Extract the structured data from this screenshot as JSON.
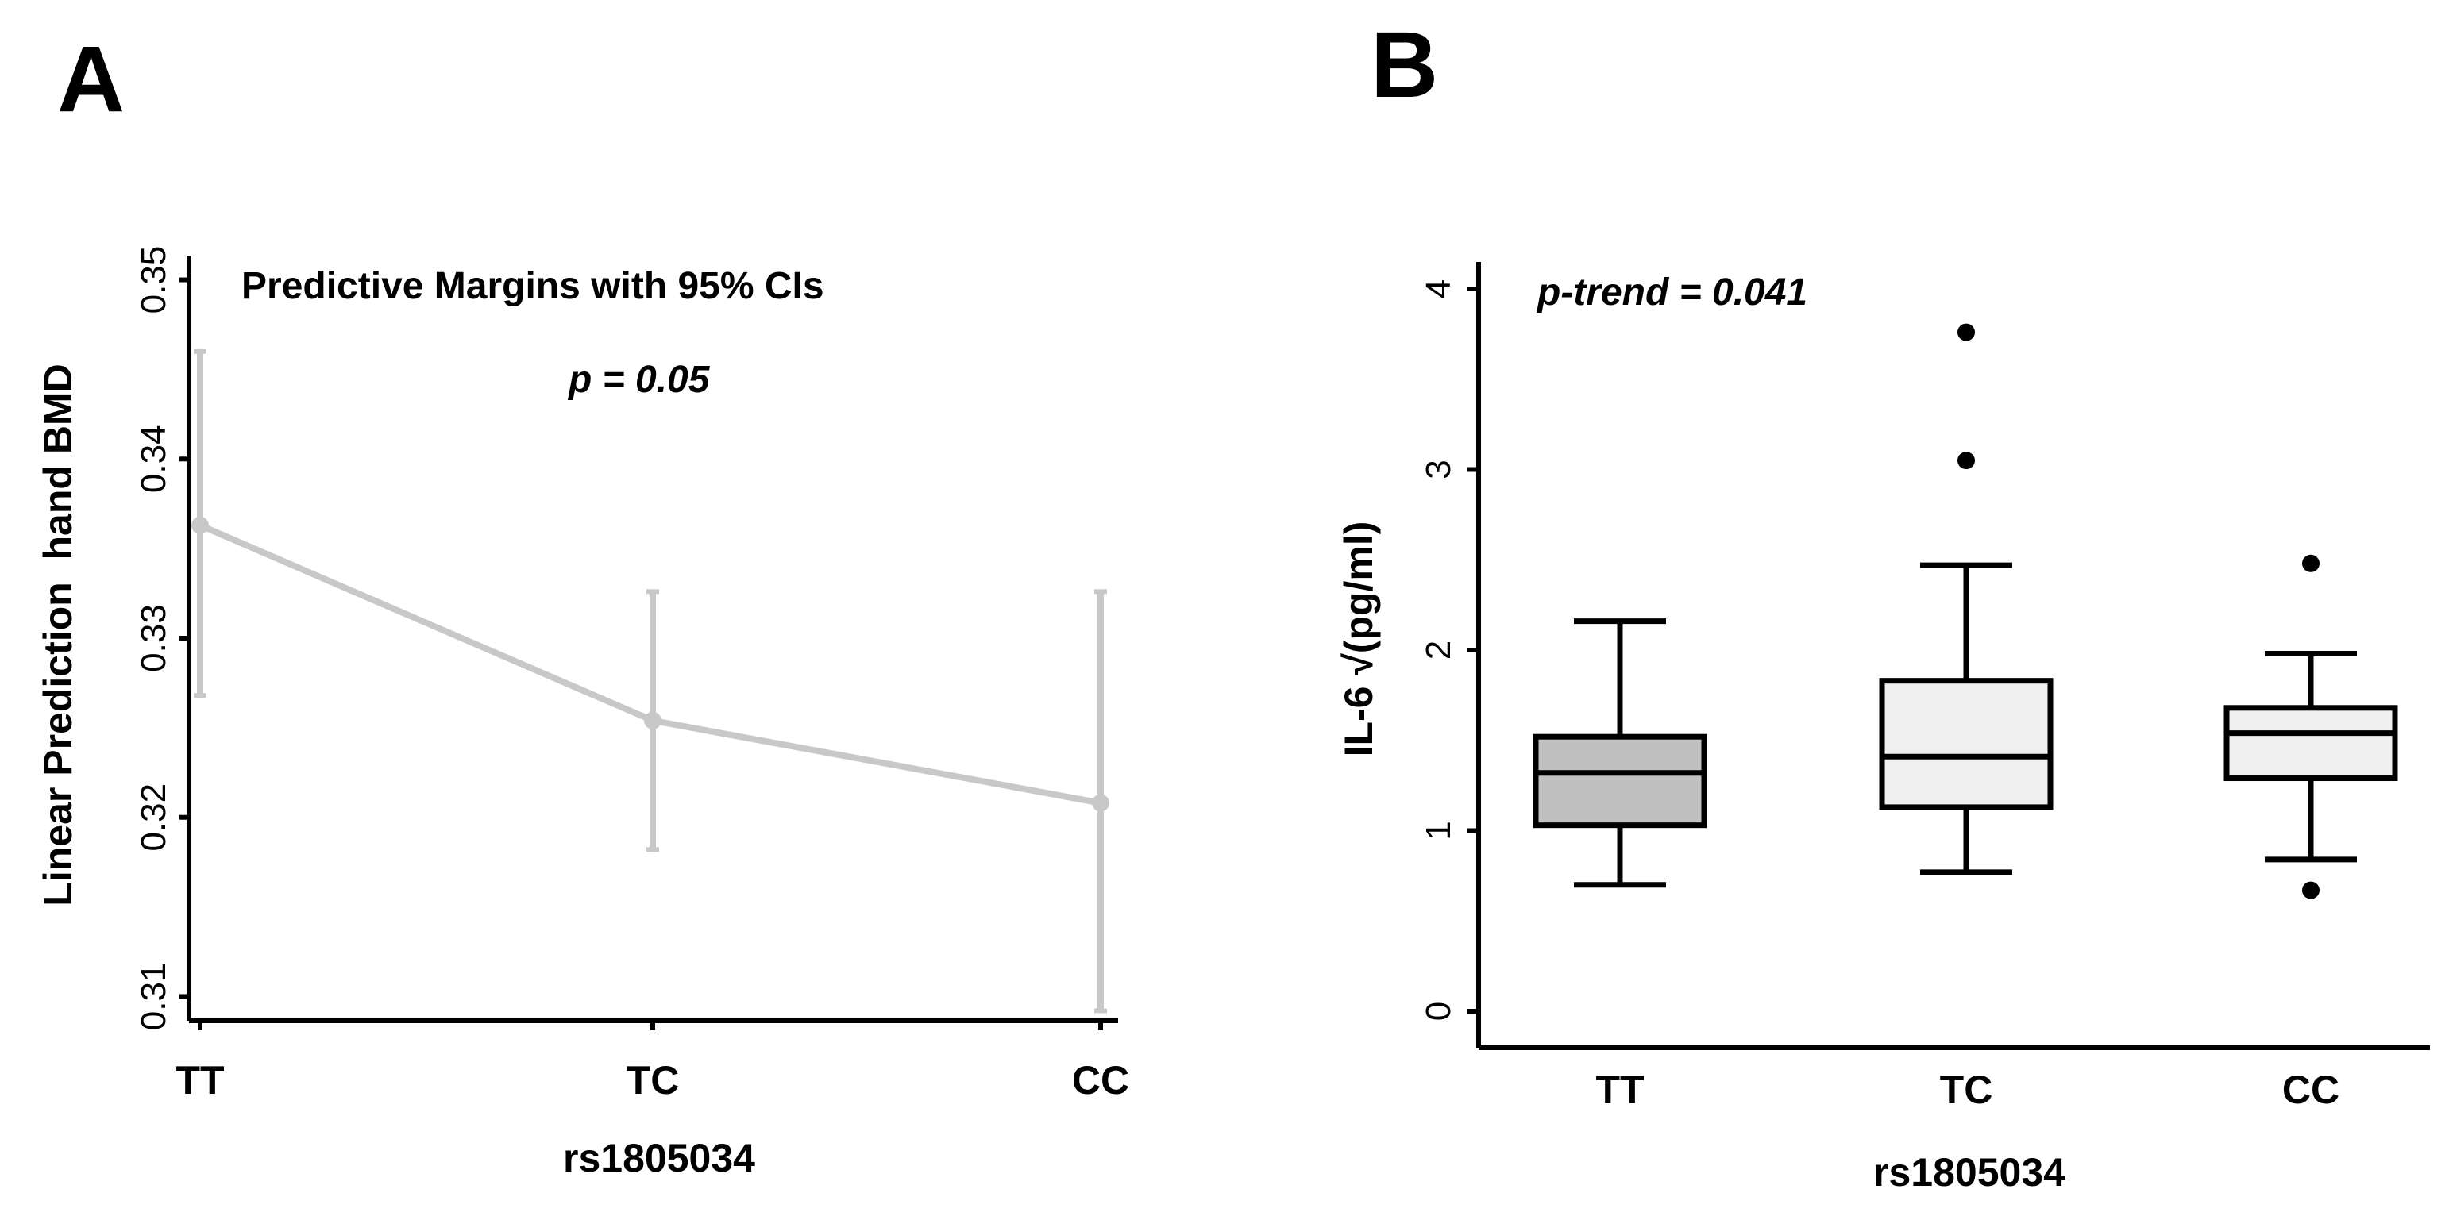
{
  "chart_data": [
    {
      "panel": "A",
      "type": "line",
      "title": "Predictive Margins with 95% CIs",
      "annotation": "p = 0.05",
      "xlabel": "rs1805034",
      "ylabel": "Linear Prediction  hand BMD",
      "categories": [
        "TT",
        "TC",
        "CC"
      ],
      "ylim": [
        0.309,
        0.351
      ],
      "yticks": [
        0.31,
        0.32,
        0.33,
        0.34,
        0.35
      ],
      "ytick_labels": [
        "0.31",
        "0.32",
        "0.33",
        "0.34",
        "0.35"
      ],
      "series": [
        {
          "name": "Linear Prediction",
          "color": "#c8c8c8",
          "values": [
            0.3363,
            0.3254,
            0.3208
          ],
          "ci_low": [
            0.3268,
            0.3182,
            0.3092
          ],
          "ci_high": [
            0.346,
            0.3326,
            0.3326
          ]
        }
      ]
    },
    {
      "panel": "B",
      "type": "box",
      "annotation": "p-trend = 0.041",
      "xlabel": "rs1805034",
      "ylabel": "IL-6 √(pg/ml)",
      "categories": [
        "TT",
        "TC",
        "CC"
      ],
      "ylim": [
        -0.15,
        4.1
      ],
      "yticks": [
        0,
        1,
        2,
        3,
        4
      ],
      "ytick_labels": [
        "0",
        "1",
        "2",
        "3",
        "4"
      ],
      "boxes": [
        {
          "category": "TT",
          "min": 0.7,
          "q1": 1.03,
          "median": 1.32,
          "q3": 1.52,
          "max": 2.16,
          "outliers": [],
          "fill": "#c0c0c0"
        },
        {
          "category": "TC",
          "min": 0.77,
          "q1": 1.13,
          "median": 1.41,
          "q3": 1.83,
          "max": 2.47,
          "outliers": [
            3.05,
            3.76
          ],
          "fill": "#f0f0f0"
        },
        {
          "category": "CC",
          "min": 0.84,
          "q1": 1.29,
          "median": 1.54,
          "q3": 1.68,
          "max": 1.98,
          "outliers": [
            0.67,
            2.48
          ],
          "fill": "#f0f0f0"
        }
      ]
    }
  ]
}
